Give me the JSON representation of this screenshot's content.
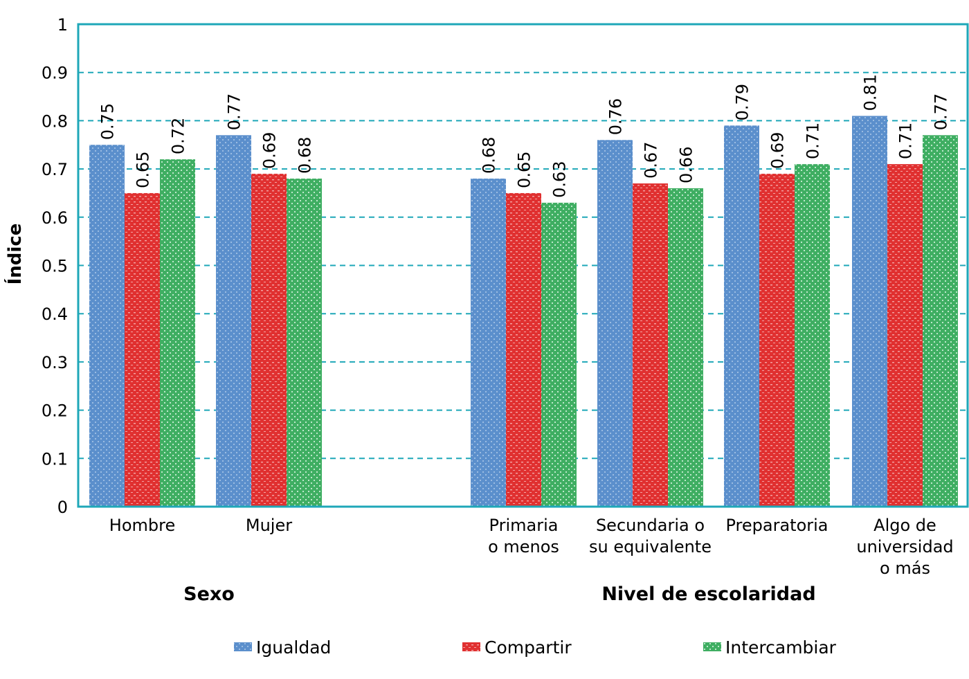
{
  "chart_data": {
    "type": "bar",
    "ylabel": "Índice",
    "ylim": [
      0,
      1
    ],
    "yticks": [
      "0",
      "0.1",
      "0.2",
      "0.3",
      "0.4",
      "0.5",
      "0.6",
      "0.7",
      "0.8",
      "0.9",
      "1"
    ],
    "grid": true,
    "legend_position": "bottom",
    "groups": [
      {
        "label": "Sexo",
        "categories": [
          {
            "label": [
              "Hombre"
            ],
            "values": [
              0.75,
              0.65,
              0.72
            ],
            "value_labels": [
              "0.75",
              "0.65",
              "0.72"
            ]
          },
          {
            "label": [
              "Mujer"
            ],
            "values": [
              0.77,
              0.69,
              0.68
            ],
            "value_labels": [
              "0.77",
              "0.69",
              "0.68"
            ]
          }
        ]
      },
      {
        "label": "Nivel de escolaridad",
        "categories": [
          {
            "label": [
              "Primaria",
              "o menos"
            ],
            "values": [
              0.68,
              0.65,
              0.63
            ],
            "value_labels": [
              "0.68",
              "0.65",
              "0.63"
            ]
          },
          {
            "label": [
              "Secundaria o",
              "su equivalente"
            ],
            "values": [
              0.76,
              0.67,
              0.66
            ],
            "value_labels": [
              "0.76",
              "0.67",
              "0.66"
            ]
          },
          {
            "label": [
              "Preparatoria"
            ],
            "values": [
              0.79,
              0.69,
              0.71
            ],
            "value_labels": [
              "0.79",
              "0.69",
              "0.71"
            ]
          },
          {
            "label": [
              "Algo de",
              "universidad",
              "o más"
            ],
            "values": [
              0.81,
              0.71,
              0.77
            ],
            "value_labels": [
              "0.81",
              "0.71",
              "0.77"
            ]
          }
        ]
      }
    ],
    "series": [
      {
        "name": "Igualdad",
        "color": "#5b8fcc"
      },
      {
        "name": "Compartir",
        "color": "#e03030"
      },
      {
        "name": "Intercambiar",
        "color": "#3fae62"
      }
    ],
    "axis_color": "#1ea7b8",
    "grid_color": "#1ea7b8"
  }
}
